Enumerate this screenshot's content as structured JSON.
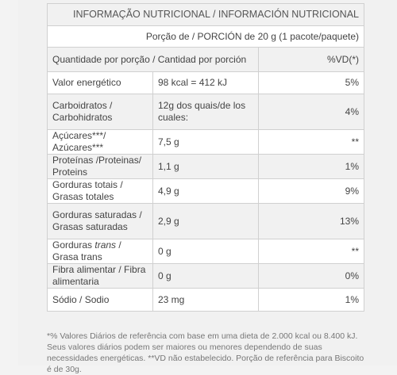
{
  "table": {
    "title": "INFORMAÇÃO NUTRICIONAL / INFORMACIÓN NUTRICIONAL",
    "portion": "Porção de / PORCIÓN de 20 g (1 pacote/paquete)",
    "header": {
      "quantity": "Quantidade por porção / Cantidad por porción",
      "vd": "%VD(*)"
    },
    "rows": [
      {
        "label": "Valor energético",
        "amount": "98 kcal = 412 kJ",
        "vd": "5%"
      },
      {
        "label": "Carboidratos / Carbohidratos",
        "amount": "12g dos quais/de los cuales:",
        "vd": "4%"
      },
      {
        "label": "Açúcares***/ Azúcares***",
        "amount": "7,5 g",
        "vd": "**"
      },
      {
        "label": "Proteínas /Proteinas/ Proteins",
        "amount": "1,1 g",
        "vd": "1%"
      },
      {
        "label": "Gorduras totais / Grasas totales",
        "amount": "4,9 g",
        "vd": "9%"
      },
      {
        "label": "Gorduras saturadas / Grasas saturadas",
        "amount": "2,9 g",
        "vd": "13%"
      },
      {
        "label_prefix": "Gorduras ",
        "label_italic": "trans",
        "label_suffix": " / Grasa trans",
        "amount": "0 g",
        "vd": "**"
      },
      {
        "label": "Fibra alimentar / Fibra alimentaria",
        "amount": "0 g",
        "vd": "0%"
      },
      {
        "label": "Sódio / Sodio",
        "amount": "23 mg",
        "vd": "1%"
      }
    ]
  },
  "footnote": "*% Valores Diários de referência com base em uma dieta de 2.000 kcal ou 8.400 kJ. Seus valores diários podem ser maiores ou menores dependendo de suas necessidades energéticas. **VD não estabelecido. Porção de referência para Biscoito é de 30g."
}
